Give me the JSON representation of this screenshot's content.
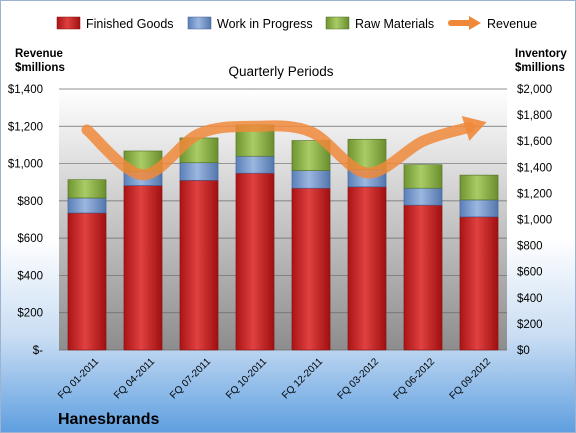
{
  "chart_data": {
    "type": "bar",
    "title": "Quarterly Periods",
    "company": "Hanesbrands",
    "left_axis_title": [
      "Revenue",
      "$millions"
    ],
    "right_axis_title": [
      "Inventory",
      "$millions"
    ],
    "categories": [
      "FQ 01-2011",
      "FQ 04-2011",
      "FQ 07-2011",
      "FQ 10-2011",
      "FQ 12-2011",
      "FQ 03-2012",
      "FQ 06-2012",
      "FQ 09-2012"
    ],
    "series": [
      {
        "name": "Finished Goods",
        "kind": "bar",
        "axis": "right",
        "color": "#cc2222",
        "values": [
          1050,
          1260,
          1300,
          1355,
          1240,
          1250,
          1110,
          1020
        ]
      },
      {
        "name": "Work in Progress",
        "kind": "bar",
        "axis": "right",
        "color": "#7b9ed3",
        "values": [
          115,
          110,
          135,
          130,
          135,
          135,
          130,
          130
        ]
      },
      {
        "name": "Raw Materials",
        "kind": "bar",
        "axis": "right",
        "color": "#8fb64b",
        "values": [
          140,
          155,
          190,
          240,
          230,
          230,
          180,
          190
        ]
      },
      {
        "name": "Revenue",
        "kind": "line",
        "axis": "left",
        "color": "#f0883a",
        "values": [
          1180,
          940,
          1160,
          1200,
          1170,
          950,
          1120,
          1210
        ]
      }
    ],
    "left_axis": {
      "min": 0,
      "max": 1400,
      "step": 200,
      "labels": [
        "$-",
        "$200",
        "$400",
        "$600",
        "$800",
        "$1,000",
        "$1,200",
        "$1,400"
      ]
    },
    "right_axis": {
      "min": 0,
      "max": 2000,
      "step": 200,
      "labels": [
        "$0",
        "$200",
        "$400",
        "$600",
        "$800",
        "$1,000",
        "$1,200",
        "$1,400",
        "$1,600",
        "$1,800",
        "$2,000"
      ]
    },
    "grid": true,
    "legend_position": "top"
  }
}
